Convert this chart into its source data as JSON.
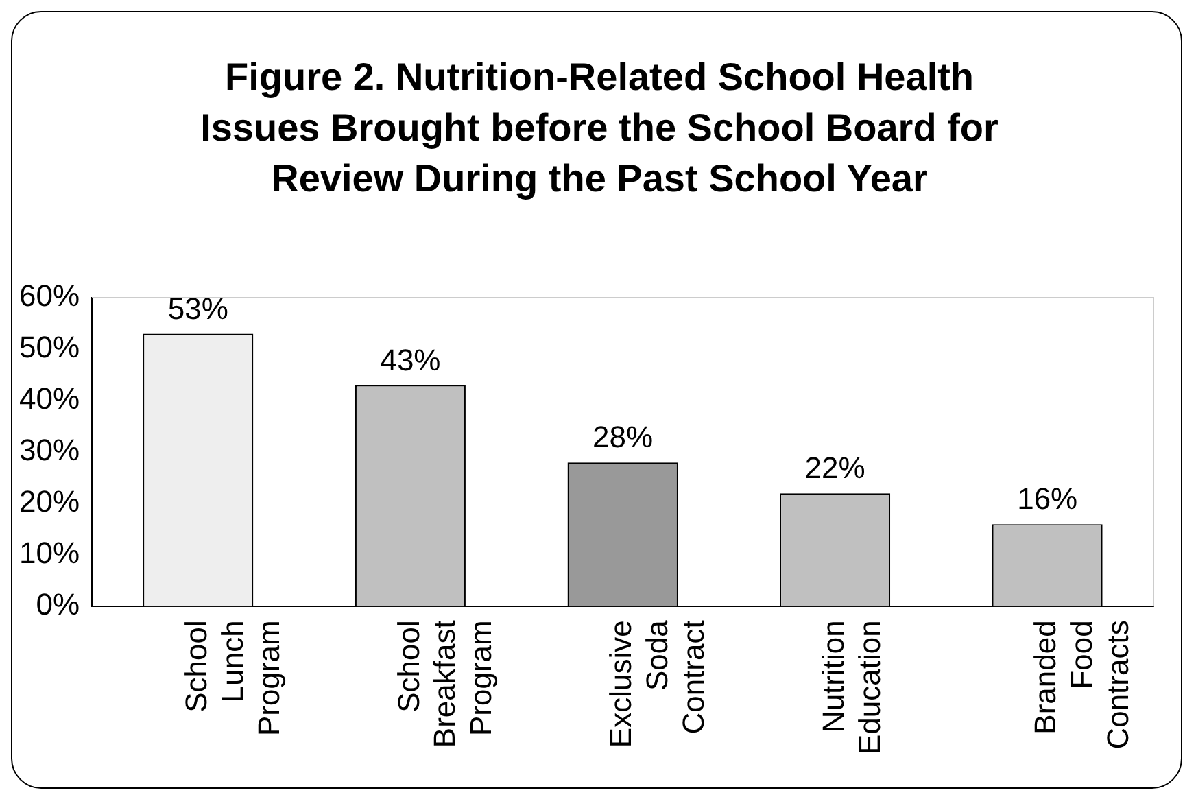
{
  "chart_data": {
    "type": "bar",
    "title": "Figure 2. Nutrition-Related School Health Issues Brought before the School Board for Review During the Past School Year",
    "categories": [
      "School Lunch Program",
      "School Breakfast Program",
      "Exclusive Soda Contract",
      "Nutrition Education",
      "Branded Food Contracts"
    ],
    "values": [
      53,
      43,
      28,
      22,
      16
    ],
    "colors": [
      "#eeeeee",
      "#c0c0c0",
      "#999999",
      "#c0c0c0",
      "#c0c0c0"
    ],
    "value_labels": [
      "53%",
      "43%",
      "28%",
      "22%",
      "16%"
    ],
    "ylim": [
      0,
      60
    ],
    "yticks": [
      {
        "value": 0,
        "label": "0%"
      },
      {
        "value": 10,
        "label": "10%"
      },
      {
        "value": 20,
        "label": "20%"
      },
      {
        "value": 30,
        "label": "30%"
      },
      {
        "value": 40,
        "label": "40%"
      },
      {
        "value": 50,
        "label": "50%"
      },
      {
        "value": 60,
        "label": "60%"
      }
    ],
    "grid": false,
    "legend": false
  }
}
